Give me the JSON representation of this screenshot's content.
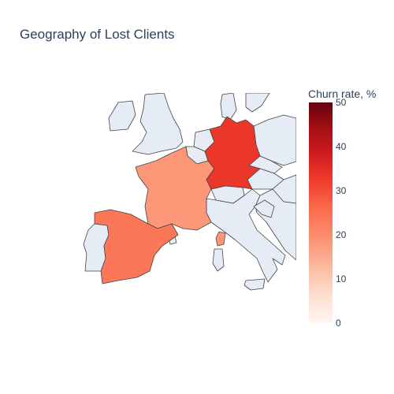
{
  "title": "Geography of Lost Clients",
  "colorbar": {
    "title": "Churn rate, %",
    "min": 0,
    "max": 50,
    "ticks": [
      "0",
      "10",
      "20",
      "30",
      "40",
      "50"
    ],
    "colorscale": "Reds"
  },
  "colors": {
    "land": "#e5ecf6",
    "border": "#444444",
    "text": "#2a3f5f"
  },
  "chart_data": {
    "type": "choropleth",
    "title": "Geography of Lost Clients",
    "scope": "europe",
    "regions": [
      {
        "location": "Germany",
        "value": 32
      },
      {
        "location": "Spain",
        "value": 23
      },
      {
        "location": "France",
        "value": 18
      }
    ]
  }
}
